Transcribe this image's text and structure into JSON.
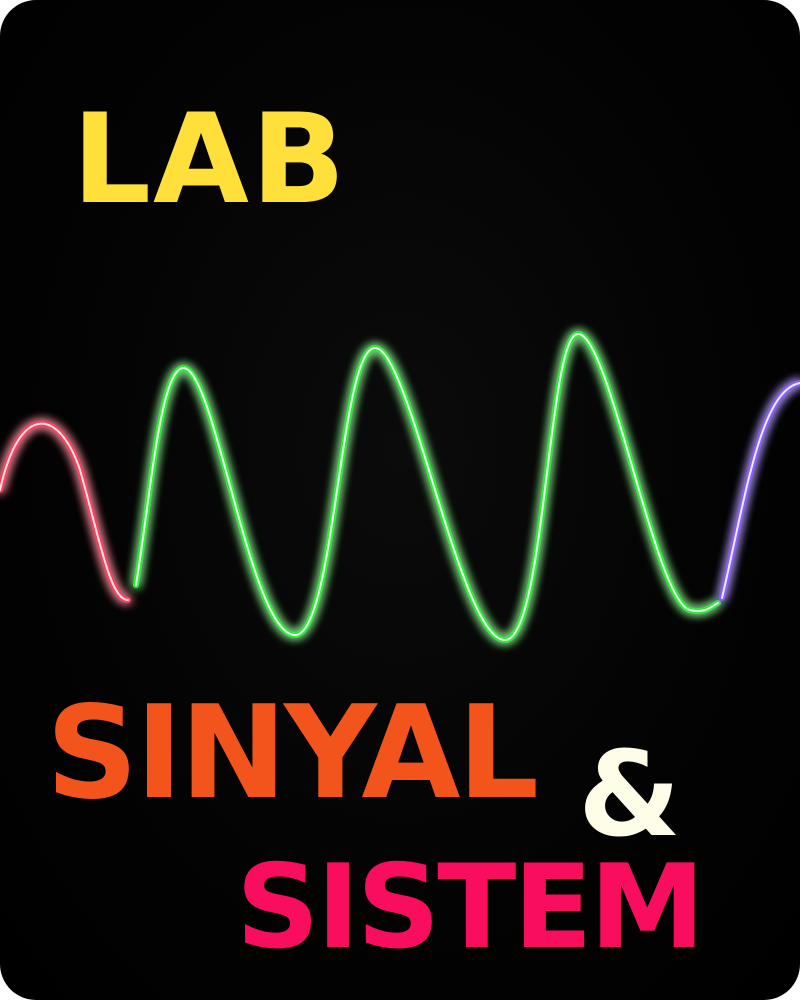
{
  "title": {
    "line1": "LAB",
    "line2": "SINYAL",
    "ampersand": "&",
    "line3": "SISTEM"
  },
  "colors": {
    "background": "#000000",
    "lab": "#ffe03a",
    "sinyal": "#f2541b",
    "ampersand": "#fdfde8",
    "sistem": "#f90d5e",
    "wave_red": "#ff3d5e",
    "wave_green": "#2eea3a",
    "wave_violet": "#8a5cff"
  }
}
